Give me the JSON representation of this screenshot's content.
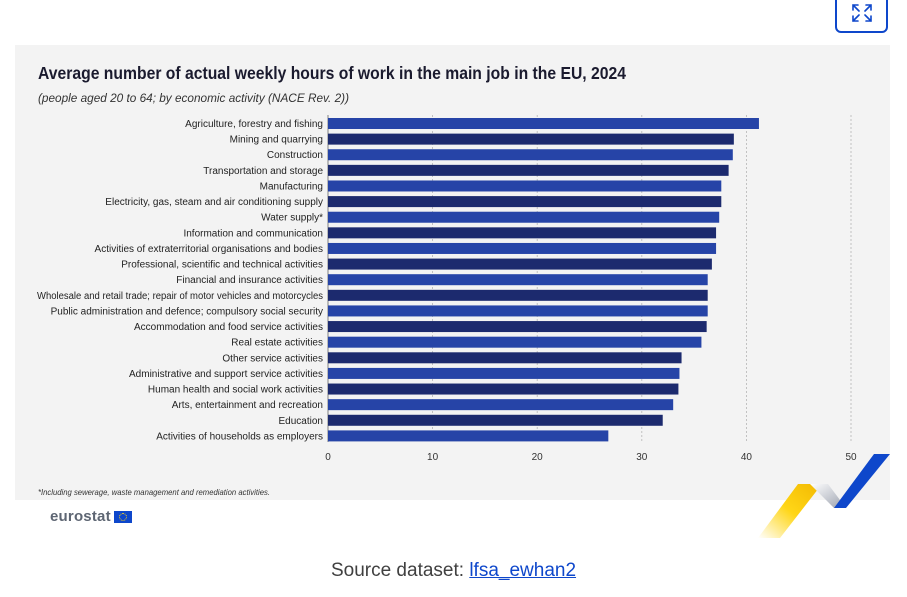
{
  "expand_button": {
    "icon": "expand-icon"
  },
  "chart_data": {
    "type": "bar",
    "orientation": "horizontal",
    "title": "Average number of actual weekly hours of work in the main job in the EU, 2024",
    "subtitle": "(people aged 20 to 64; by economic activity (NACE Rev. 2))",
    "categories": [
      "Agriculture, forestry and fishing",
      "Mining and quarrying",
      "Construction",
      "Transportation and storage",
      "Manufacturing",
      "Electricity, gas, steam and air conditioning supply",
      "Water supply*",
      "Information and communication",
      "Activities of extraterritorial organisations and bodies",
      "Professional, scientific and technical activities",
      "Financial and insurance activities",
      "Wholesale and retail trade; repair of motor vehicles and motorcycles",
      "Public administration and defence; compulsory social security",
      "Accommodation and food service activities",
      "Real estate activities",
      "Other service activities",
      "Administrative and support service activities",
      "Human health and social work activities",
      "Arts, entertainment and recreation",
      "Education",
      "Activities of households as employers"
    ],
    "values": [
      41.2,
      38.8,
      38.7,
      38.3,
      37.6,
      37.6,
      37.4,
      37.1,
      37.1,
      36.7,
      36.3,
      36.3,
      36.3,
      36.2,
      35.7,
      33.8,
      33.6,
      33.5,
      33.0,
      32.0,
      26.8
    ],
    "xlim": [
      0,
      50
    ],
    "xticks": [
      "0",
      "10",
      "20",
      "30",
      "40",
      "50"
    ],
    "grid": true,
    "bar_colors": [
      "#2644a7",
      "#1c2a6e"
    ],
    "footnote": "*Including sewerage, waste management and remediation activities."
  },
  "logo": {
    "text": "eurostat"
  },
  "source": {
    "label": "Source dataset:",
    "link_text": "lfsa_ewhan2"
  }
}
